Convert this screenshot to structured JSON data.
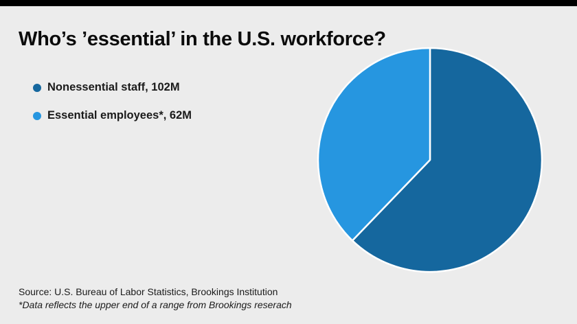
{
  "header": {
    "title": "Who’s ’essential’ in the U.S. workforce?"
  },
  "legend": [
    {
      "label": "Nonessential staff, 102M",
      "color": "#15679e"
    },
    {
      "label": "Essential employees*, 62M",
      "color": "#2696e0"
    }
  ],
  "footer": {
    "source": "Source: U.S. Bureau of Labor Statistics, Brookings Institution",
    "note": "*Data reflects the upper end of a range from Brookings reserach"
  },
  "chart_data": {
    "type": "pie",
    "title": "Who’s ’essential’ in the U.S. workforce?",
    "labels": [
      "Nonessential staff",
      "Essential employees*"
    ],
    "values": [
      102,
      62
    ],
    "unit": "M",
    "colors": [
      "#15679e",
      "#2696e0"
    ],
    "start_angle_deg": 0,
    "direction": "clockwise",
    "legend_position": "left",
    "separator_color": "#ffffff"
  }
}
